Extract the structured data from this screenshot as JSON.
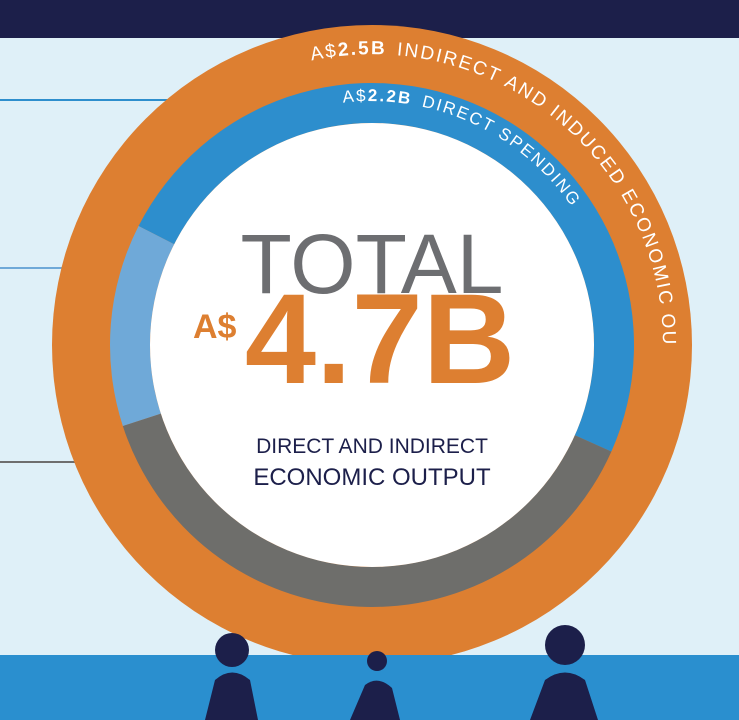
{
  "outer_ring": {
    "currency": "A$",
    "amount": "2.5B",
    "label": "INDIRECT AND INDUCED ECONOMIC OUTPUT"
  },
  "inner_ring": {
    "currency": "A$",
    "amount": "2.2B",
    "label": "DIRECT SPENDING"
  },
  "center": {
    "title": "TOTAL",
    "currency": "A$",
    "amount": "4.7B",
    "line1": "DIRECT AND INDIRECT",
    "line2": "ECONOMIC OUTPUT"
  }
}
